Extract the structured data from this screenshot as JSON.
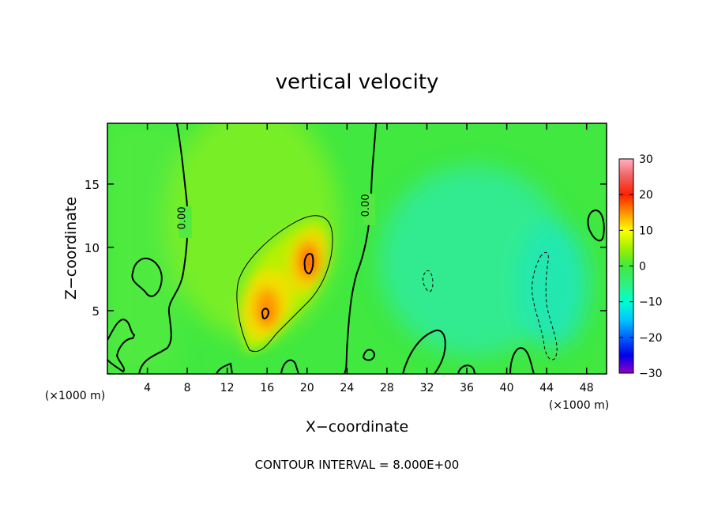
{
  "chart_data": {
    "type": "heatmap",
    "title": "vertical velocity",
    "xlabel": "X−coordinate",
    "ylabel": "Z−coordinate",
    "x_unit": "(×1000 m)",
    "z_unit": "(×1000 m)",
    "xlim": [
      0,
      50
    ],
    "ylim": [
      0,
      19.8
    ],
    "x_ticks": [
      4,
      8,
      12,
      16,
      20,
      24,
      28,
      32,
      36,
      40,
      44,
      48
    ],
    "x_tick_labels": [
      "4",
      "8",
      "12",
      "16",
      "20",
      "24",
      "28",
      "32",
      "36",
      "40",
      "44",
      "48"
    ],
    "y_ticks": [
      5,
      10,
      15
    ],
    "y_tick_labels": [
      "5",
      "10",
      "15"
    ],
    "colorbar": {
      "min": -30,
      "max": 30,
      "ticks": [
        30,
        20,
        10,
        0,
        -10,
        -20,
        -30
      ],
      "tick_labels": [
        "30",
        "20",
        "10",
        "0",
        "−10",
        "−20",
        "−30"
      ],
      "colors": [
        "#8e00c8",
        "#0000e8",
        "#0060ff",
        "#00c8ff",
        "#00ffd0",
        "#30f080",
        "#40e840",
        "#a0f000",
        "#ffff00",
        "#ff9000",
        "#ff2000",
        "#f06060",
        "#ffb0c0"
      ]
    },
    "contour_interval_text": "CONTOUR INTERVAL = 8.000E+00",
    "contour_labels": [
      {
        "text": "0.00",
        "x": 7.8,
        "z": 12.0
      },
      {
        "text": "0.00",
        "x": 26.2,
        "z": 13.0
      }
    ],
    "features": [
      {
        "kind": "max",
        "x": 20.2,
        "z": 8.8,
        "value": 27
      },
      {
        "kind": "max",
        "x": 15.9,
        "z": 4.8,
        "value": 24
      },
      {
        "kind": "min",
        "x": 43.5,
        "z": 7.0,
        "value": -9
      },
      {
        "kind": "min",
        "x": 31.8,
        "z": 7.3,
        "value": -8
      }
    ]
  }
}
